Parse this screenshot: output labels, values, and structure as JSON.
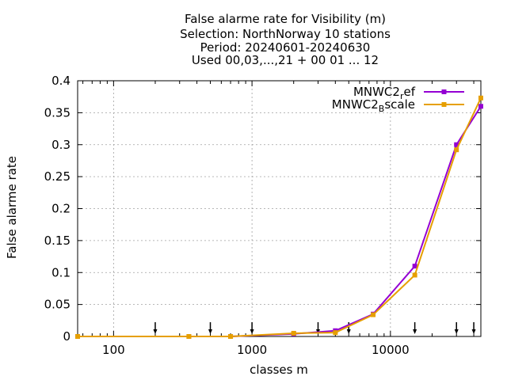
{
  "chart_data": {
    "type": "line",
    "title_lines": [
      "False alarme rate  for Visibility (m)",
      "Selection: NorthNorway     10 stations",
      "Period: 20240601-20240630",
      "Used 00,03,...,21 + 00 01 ... 12"
    ],
    "xlabel": "classes m",
    "ylabel": "False alarme rate",
    "x_scale": "log",
    "xlim": [
      55,
      45000
    ],
    "ylim": [
      0,
      0.4
    ],
    "x_ticks": [
      100,
      1000,
      10000
    ],
    "x_tick_labels": [
      "100",
      "1000",
      "10000"
    ],
    "y_ticks": [
      0,
      0.05,
      0.1,
      0.15,
      0.2,
      0.25,
      0.3,
      0.35,
      0.4
    ],
    "y_tick_labels": [
      "0",
      "0.05",
      "0.1",
      "0.15",
      "0.2",
      "0.25",
      "0.3",
      "0.35",
      "0.4"
    ],
    "grid": true,
    "legend_position": "top-right",
    "threshold_arrows_x": [
      200,
      500,
      1000,
      3000,
      5000,
      15000,
      30000,
      40000
    ],
    "series": [
      {
        "name": "MNWC2_ref",
        "label_base": "MNWC2",
        "label_sub": "r",
        "label_tail": "ef",
        "color": "#9400d3",
        "x": [
          55,
          350,
          700,
          2000,
          4000,
          7500,
          15000,
          30000,
          45000
        ],
        "values": [
          0.0,
          0.0,
          0.0,
          0.004,
          0.009,
          0.035,
          0.11,
          0.3,
          0.36
        ]
      },
      {
        "name": "MNWC2_Bscale",
        "label_base": "MNWC2",
        "label_sub": "B",
        "label_tail": "scale",
        "color": "#e69f00",
        "x": [
          55,
          350,
          700,
          2000,
          4000,
          7500,
          15000,
          30000,
          45000
        ],
        "values": [
          0.0,
          0.0,
          0.0,
          0.005,
          0.006,
          0.034,
          0.096,
          0.292,
          0.373
        ]
      }
    ]
  }
}
